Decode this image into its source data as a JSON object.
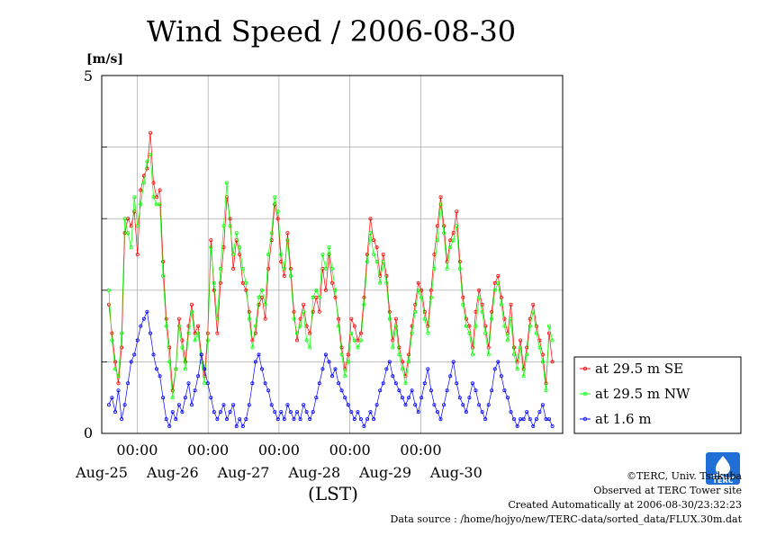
{
  "chart_data": {
    "type": "line",
    "title": "Wind Speed / 2006-08-30",
    "unit": "[m/s]",
    "xlabel": "(LST)",
    "ylim": [
      0,
      5
    ],
    "y_tick_labels": [
      "0",
      "5"
    ],
    "y_gridlines": [
      1,
      2,
      3,
      4
    ],
    "x_range_days": [
      "2006-08-24 12:00",
      "2006-08-30 23:30"
    ],
    "x_tick_time_label": "00:00",
    "x_tick_date_labels": [
      "Aug-25",
      "Aug-26",
      "Aug-27",
      "Aug-28",
      "Aug-29",
      "Aug-30"
    ],
    "grid": true,
    "legend_position": "right",
    "series": [
      {
        "name": "at 29.5 m SE",
        "color": "#ff0000",
        "values": [
          1.8,
          1.4,
          1.0,
          0.7,
          1.2,
          2.8,
          3.0,
          2.9,
          3.1,
          2.5,
          3.4,
          3.6,
          3.7,
          4.2,
          3.5,
          3.3,
          3.4,
          2.4,
          1.6,
          1.2,
          0.6,
          0.9,
          1.6,
          1.3,
          1.0,
          1.5,
          1.8,
          1.4,
          1.5,
          1.1,
          0.8,
          1.4,
          2.7,
          2.0,
          1.4,
          2.1,
          2.6,
          3.3,
          3.0,
          2.3,
          2.7,
          2.5,
          2.1,
          2.0,
          1.7,
          1.3,
          1.4,
          1.8,
          1.9,
          1.6,
          2.3,
          2.7,
          3.2,
          3.0,
          2.4,
          2.2,
          2.8,
          2.3,
          1.7,
          1.3,
          1.6,
          1.8,
          1.5,
          1.4,
          1.7,
          1.9,
          1.7,
          2.3,
          2.0,
          2.5,
          2.1,
          1.9,
          1.6,
          1.2,
          0.9,
          1.1,
          1.6,
          1.5,
          1.3,
          1.4,
          1.9,
          2.5,
          3.0,
          2.7,
          2.6,
          2.2,
          2.5,
          2.2,
          1.7,
          1.3,
          1.6,
          1.2,
          1.0,
          0.8,
          1.1,
          1.5,
          1.8,
          2.1,
          2.0,
          1.7,
          1.5,
          2.0,
          2.5,
          2.9,
          3.3,
          2.9,
          2.4,
          2.7,
          2.8,
          3.1,
          2.4,
          1.9,
          1.6,
          1.5,
          1.2,
          1.7,
          2.0,
          1.8,
          1.5,
          1.2,
          1.7,
          2.1,
          2.2,
          1.9,
          1.6,
          1.4,
          1.8,
          1.2,
          1.0,
          1.3,
          0.9,
          1.2,
          1.6,
          1.8,
          1.5,
          1.3,
          1.1,
          0.7,
          1.4,
          1.0
        ],
        "x_start_days": 0.0,
        "x_step_days": 0.0625
      },
      {
        "name": "at 29.5 m NW",
        "color": "#00ff00",
        "values": [
          2.0,
          1.3,
          0.9,
          0.8,
          1.4,
          3.0,
          2.8,
          2.6,
          3.3,
          2.9,
          3.2,
          3.5,
          3.8,
          3.9,
          3.3,
          3.2,
          3.2,
          2.2,
          1.5,
          1.0,
          0.5,
          0.9,
          1.5,
          1.2,
          0.9,
          1.4,
          1.7,
          1.3,
          1.4,
          1.0,
          0.7,
          1.3,
          2.6,
          2.1,
          1.6,
          2.3,
          2.9,
          3.5,
          2.9,
          2.5,
          2.8,
          2.6,
          2.3,
          2.1,
          1.6,
          1.2,
          1.5,
          1.9,
          2.0,
          1.8,
          2.5,
          2.8,
          3.3,
          3.1,
          2.5,
          2.3,
          2.7,
          2.2,
          1.6,
          1.4,
          1.5,
          1.7,
          1.3,
          1.2,
          1.9,
          2.0,
          1.9,
          2.5,
          2.3,
          2.6,
          2.3,
          2.0,
          1.5,
          1.1,
          0.8,
          1.0,
          1.4,
          1.3,
          1.2,
          1.3,
          1.8,
          2.4,
          2.8,
          2.5,
          2.4,
          2.1,
          2.4,
          2.1,
          1.6,
          1.2,
          1.5,
          1.1,
          0.9,
          0.7,
          1.0,
          1.4,
          1.7,
          2.0,
          1.9,
          1.6,
          1.4,
          1.9,
          2.3,
          2.7,
          3.2,
          2.8,
          2.3,
          2.6,
          2.7,
          2.9,
          2.3,
          1.8,
          1.5,
          1.4,
          1.1,
          1.5,
          1.9,
          1.7,
          1.4,
          1.1,
          1.6,
          2.0,
          2.1,
          1.8,
          1.5,
          1.3,
          1.6,
          1.1,
          0.9,
          1.2,
          0.8,
          1.1,
          1.5,
          1.7,
          1.4,
          1.2,
          1.0,
          0.6,
          1.5,
          1.3
        ],
        "x_start_days": 0.0,
        "x_step_days": 0.0625
      },
      {
        "name": "at 1.6 m",
        "color": "#0000ff",
        "values": [
          0.4,
          0.5,
          0.3,
          0.6,
          0.2,
          0.4,
          0.7,
          1.0,
          1.1,
          1.3,
          1.5,
          1.6,
          1.7,
          1.4,
          1.1,
          0.9,
          0.8,
          0.5,
          0.2,
          0.1,
          0.3,
          0.2,
          0.4,
          0.3,
          0.5,
          0.7,
          0.4,
          0.6,
          0.8,
          1.1,
          0.9,
          0.7,
          0.5,
          0.3,
          0.2,
          0.3,
          0.4,
          0.2,
          0.3,
          0.4,
          0.1,
          0.2,
          0.1,
          0.2,
          0.4,
          0.7,
          1.0,
          1.1,
          0.9,
          0.7,
          0.6,
          0.4,
          0.3,
          0.2,
          0.3,
          0.2,
          0.4,
          0.3,
          0.2,
          0.3,
          0.2,
          0.4,
          0.3,
          0.2,
          0.3,
          0.5,
          0.7,
          0.9,
          1.1,
          1.0,
          0.8,
          0.9,
          0.7,
          0.6,
          0.5,
          0.4,
          0.3,
          0.2,
          0.3,
          0.2,
          0.1,
          0.2,
          0.3,
          0.2,
          0.4,
          0.6,
          0.7,
          0.9,
          1.0,
          0.8,
          0.7,
          0.6,
          0.5,
          0.4,
          0.5,
          0.6,
          0.4,
          0.3,
          0.5,
          0.7,
          0.9,
          0.6,
          0.4,
          0.3,
          0.2,
          0.4,
          0.6,
          0.8,
          1.0,
          0.7,
          0.5,
          0.4,
          0.3,
          0.5,
          0.7,
          0.6,
          0.4,
          0.3,
          0.2,
          0.4,
          0.6,
          0.9,
          1.0,
          0.8,
          0.6,
          0.5,
          0.3,
          0.2,
          0.1,
          0.2,
          0.2,
          0.3,
          0.2,
          0.1,
          0.2,
          0.3,
          0.4,
          0.2,
          0.2,
          0.1
        ],
        "x_start_days": 0.0,
        "x_step_days": 0.0625
      }
    ]
  },
  "footer": {
    "copyright": "©TERC, Univ. Tsukuba",
    "observed": "Observed at TERC Tower site",
    "created": "Created Automatically at 2006-08-30/23:32:23",
    "source": "Data source : /home/hojyo/new/TERC-data/sorted_data/FLUX.30m.dat"
  },
  "logo": {
    "text": "TERC",
    "color": "#1f6fd6"
  }
}
